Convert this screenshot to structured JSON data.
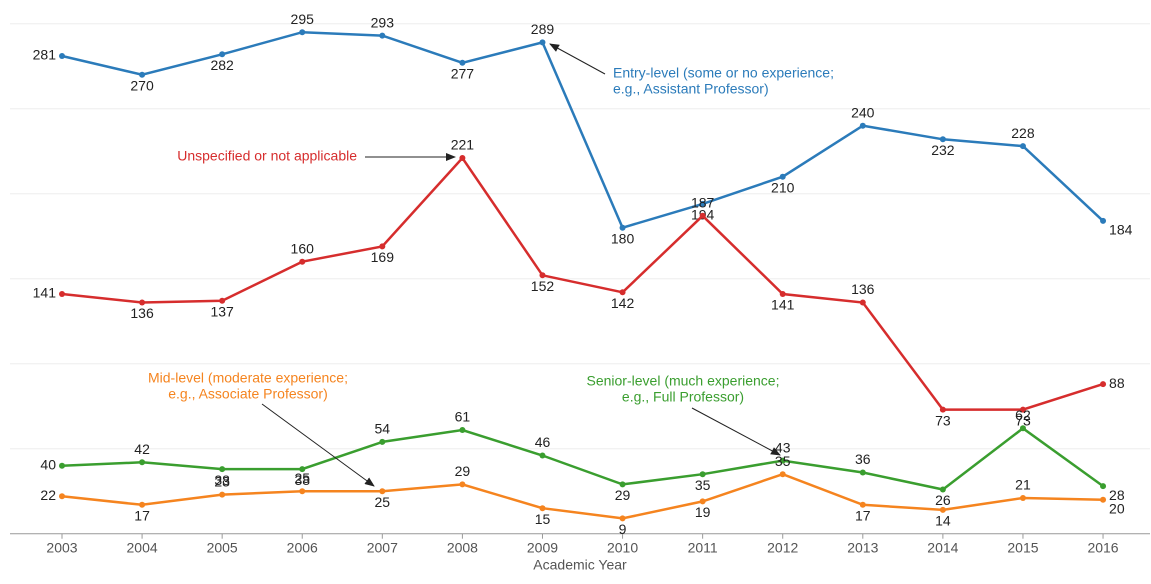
{
  "chart_data": {
    "type": "line",
    "x_label": "Academic Year",
    "categories": [
      "2003",
      "2004",
      "2005",
      "2006",
      "2007",
      "2008",
      "2009",
      "2010",
      "2011",
      "2012",
      "2013",
      "2014",
      "2015",
      "2016"
    ],
    "series": [
      {
        "name": "Entry-level",
        "color": "#2b7bba",
        "values": [
          281,
          270,
          282,
          295,
          293,
          277,
          289,
          180,
          194,
          210,
          240,
          232,
          228,
          184
        ]
      },
      {
        "name": "Unspecified",
        "color": "#d62d2d",
        "values": [
          141,
          136,
          137,
          160,
          169,
          221,
          152,
          142,
          187,
          141,
          136,
          73,
          73,
          88
        ]
      },
      {
        "name": "Senior-level",
        "color": "#3a9e2f",
        "values": [
          40,
          42,
          38,
          38,
          54,
          61,
          46,
          29,
          35,
          43,
          36,
          26,
          62,
          28
        ]
      },
      {
        "name": "Mid-level",
        "color": "#f5841f",
        "values": [
          22,
          17,
          23,
          25,
          25,
          29,
          15,
          9,
          19,
          35,
          17,
          14,
          21,
          20
        ]
      }
    ],
    "annotations": [
      {
        "lines": [
          "Entry-level (some or no experience;",
          "e.g., Assistant Professor)"
        ],
        "color": "#2b7bba"
      },
      {
        "lines": [
          "Unspecified or not applicable"
        ],
        "color": "#d62d2d"
      },
      {
        "lines": [
          "Mid-level (moderate experience;",
          "e.g., Associate Professor)"
        ],
        "color": "#f5841f"
      },
      {
        "lines": [
          "Senior-level (much experience;",
          "e.g., Full Professor)"
        ],
        "color": "#3a9e2f"
      }
    ],
    "ylim": [
      0,
      310
    ],
    "yticks": [
      0,
      50,
      100,
      150,
      200,
      250,
      300
    ],
    "grid": true
  }
}
